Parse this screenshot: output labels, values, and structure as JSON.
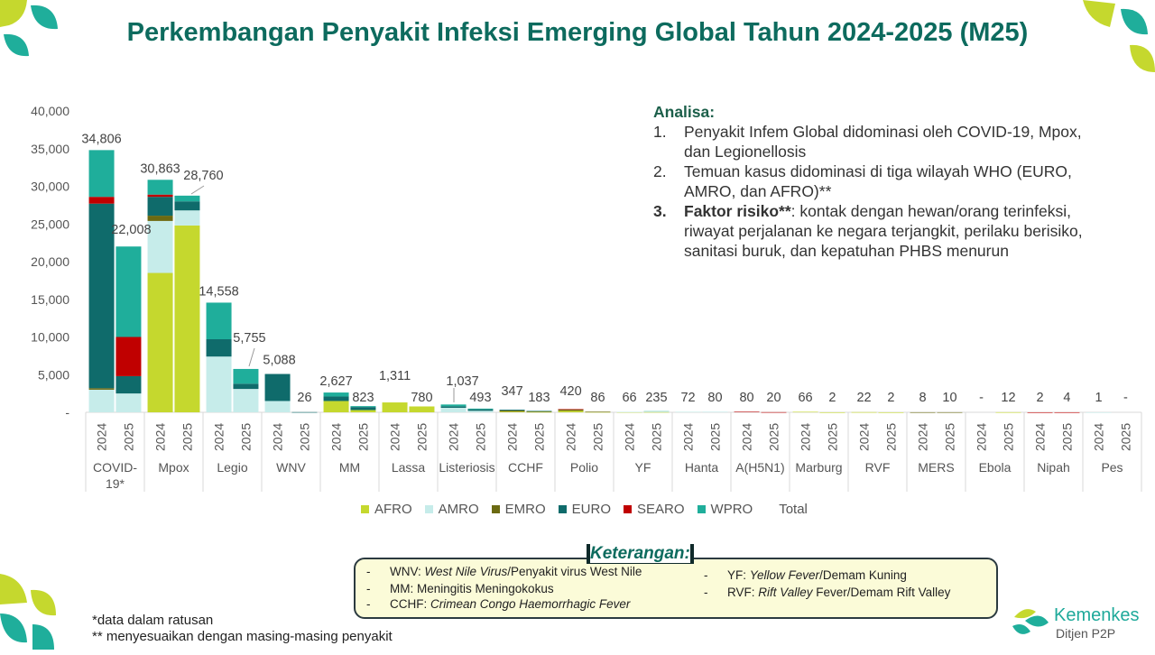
{
  "title": "Perkembangan Penyakit Infeksi Emerging Global Tahun 2024-2025 (M25)",
  "analysis": {
    "heading": "Analisa:",
    "items": [
      {
        "num": "1.",
        "text": "Penyakit Infem Global didominasi oleh COVID-19, Mpox, dan Legionellosis"
      },
      {
        "num": "2.",
        "text": "Temuan kasus didominasi di tiga wilayah WHO (EURO, AMRO, dan AFRO)**"
      },
      {
        "num": "3.",
        "keyword": "Faktor risiko**",
        "text": ": kontak dengan hewan/orang terinfeksi, riwayat perjalanan ke negara terjangkit, perilaku berisiko, sanitasi buruk, dan kepatuhan PHBS menurun"
      }
    ]
  },
  "notes": {
    "title": "Keterangan:",
    "dash": "-",
    "left": [
      {
        "abbr": "WNV: ",
        "desc": "West Nile Virus",
        "rest": "/Penyakit virus West Nile",
        "italic": true
      },
      {
        "abbr": "MM: ",
        "desc": "Meningitis Meningokokus",
        "rest": "",
        "italic": false
      },
      {
        "abbr": "CCHF: ",
        "desc": "Crimean Congo Haemorrhagic Fever",
        "rest": "",
        "italic": true
      }
    ],
    "right": [
      {
        "abbr": "YF: ",
        "desc": "Yellow Fever",
        "rest": "/Demam Kuning",
        "italic": true
      },
      {
        "abbr": "RVF: ",
        "desc": "Rift Valley",
        "rest": " Fever/Demam Rift Valley",
        "italic": true
      }
    ]
  },
  "footer": {
    "line1": "*data dalam ratusan",
    "line2": "** menyesuaikan dengan masing-masing penyakit"
  },
  "brand": {
    "name": "Kemenkes",
    "sub": "Ditjen P2P"
  },
  "colors": {
    "AFRO": "#c5d82e",
    "AMRO": "#c6ecea",
    "EMRO": "#6b6a12",
    "EURO": "#0f6b6b",
    "SEARO": "#c00000",
    "WPRO": "#1fae9b",
    "title": "#0d6b5e",
    "axis": "#d9d9d9"
  },
  "chart_data": {
    "type": "bar",
    "stacked": true,
    "title": "Perkembangan Penyakit Infeksi Emerging Global Tahun 2024-2025 (M25)",
    "ylim": [
      0,
      40000
    ],
    "yticks": [
      "-",
      "5,000",
      "10,000",
      "15,000",
      "20,000",
      "25,000",
      "30,000",
      "35,000",
      "40,000"
    ],
    "series_names": [
      "AFRO",
      "AMRO",
      "EMRO",
      "EURO",
      "SEARO",
      "WPRO"
    ],
    "legend": [
      "AFRO",
      "AMRO",
      "EMRO",
      "EURO",
      "SEARO",
      "WPRO",
      "Total"
    ],
    "groups": [
      {
        "name": "COVID-19*",
        "bars": [
          {
            "year": "2024",
            "total": 34806,
            "label": "34,806",
            "values": [
              0,
              3000,
              200,
              24500,
              900,
              6206
            ]
          },
          {
            "year": "2025",
            "total": 22008,
            "label": "22,008",
            "values": [
              0,
              2500,
              0,
              2300,
              5200,
              12008
            ]
          }
        ]
      },
      {
        "name": "Mpox",
        "bars": [
          {
            "year": "2024",
            "total": 30863,
            "label": "30,863",
            "values": [
              18500,
              6900,
              700,
              2500,
              300,
              1963
            ]
          },
          {
            "year": "2025",
            "total": 28760,
            "label": "28,760",
            "values": [
              24800,
              2000,
              0,
              1200,
              0,
              760
            ]
          }
        ]
      },
      {
        "name": "Legio",
        "bars": [
          {
            "year": "2024",
            "total": 14558,
            "label": "14,558",
            "values": [
              0,
              7400,
              0,
              2300,
              0,
              4858
            ]
          },
          {
            "year": "2025",
            "total": 5755,
            "label": "5,755",
            "values": [
              0,
              3100,
              0,
              700,
              0,
              1955
            ]
          }
        ]
      },
      {
        "name": "WNV",
        "bars": [
          {
            "year": "2024",
            "total": 5088,
            "label": "5,088",
            "values": [
              0,
              1500,
              0,
              3588,
              0,
              0
            ]
          },
          {
            "year": "2025",
            "total": 26,
            "label": "26",
            "values": [
              0,
              0,
              0,
              26,
              0,
              0
            ]
          }
        ]
      },
      {
        "name": "MM",
        "bars": [
          {
            "year": "2024",
            "total": 2627,
            "label": "2,627",
            "values": [
              1500,
              0,
              0,
              600,
              0,
              527
            ]
          },
          {
            "year": "2025",
            "total": 823,
            "label": "823",
            "values": [
              300,
              0,
              0,
              400,
              0,
              123
            ]
          }
        ]
      },
      {
        "name": "Lassa",
        "bars": [
          {
            "year": "2024",
            "total": 1311,
            "label": "1,311",
            "values": [
              1311,
              0,
              0,
              0,
              0,
              0
            ]
          },
          {
            "year": "2025",
            "total": 780,
            "label": "780",
            "values": [
              780,
              0,
              0,
              0,
              0,
              0
            ]
          }
        ]
      },
      {
        "name": "Listeriosis",
        "bars": [
          {
            "year": "2024",
            "total": 1037,
            "label": "1,037",
            "values": [
              0,
              600,
              0,
              200,
              0,
              237
            ]
          },
          {
            "year": "2025",
            "total": 493,
            "label": "493",
            "values": [
              0,
              200,
              0,
              200,
              0,
              93
            ]
          }
        ]
      },
      {
        "name": "CCHF",
        "bars": [
          {
            "year": "2024",
            "total": 347,
            "label": "347",
            "values": [
              100,
              0,
              147,
              100,
              0,
              0
            ]
          },
          {
            "year": "2025",
            "total": 183,
            "label": "183",
            "values": [
              50,
              0,
              80,
              53,
              0,
              0
            ]
          }
        ]
      },
      {
        "name": "Polio",
        "bars": [
          {
            "year": "2024",
            "total": 420,
            "label": "420",
            "values": [
              200,
              0,
              180,
              0,
              40,
              0
            ]
          },
          {
            "year": "2025",
            "total": 86,
            "label": "86",
            "values": [
              40,
              0,
              46,
              0,
              0,
              0
            ]
          }
        ]
      },
      {
        "name": "YF",
        "bars": [
          {
            "year": "2024",
            "total": 66,
            "label": "66",
            "values": [
              30,
              36,
              0,
              0,
              0,
              0
            ]
          },
          {
            "year": "2025",
            "total": 235,
            "label": "235",
            "values": [
              35,
              200,
              0,
              0,
              0,
              0
            ]
          }
        ]
      },
      {
        "name": "Hanta",
        "bars": [
          {
            "year": "2024",
            "total": 72,
            "label": "72",
            "values": [
              0,
              72,
              0,
              0,
              0,
              0
            ]
          },
          {
            "year": "2025",
            "total": 80,
            "label": "80",
            "values": [
              0,
              80,
              0,
              0,
              0,
              0
            ]
          }
        ]
      },
      {
        "name": "A(H5N1)",
        "bars": [
          {
            "year": "2024",
            "total": 80,
            "label": "80",
            "values": [
              0,
              70,
              0,
              0,
              10,
              0
            ]
          },
          {
            "year": "2025",
            "total": 20,
            "label": "20",
            "values": [
              0,
              10,
              0,
              0,
              10,
              0
            ]
          }
        ]
      },
      {
        "name": "Marburg",
        "bars": [
          {
            "year": "2024",
            "total": 66,
            "label": "66",
            "values": [
              66,
              0,
              0,
              0,
              0,
              0
            ]
          },
          {
            "year": "2025",
            "total": 2,
            "label": "2",
            "values": [
              2,
              0,
              0,
              0,
              0,
              0
            ]
          }
        ]
      },
      {
        "name": "RVF",
        "bars": [
          {
            "year": "2024",
            "total": 22,
            "label": "22",
            "values": [
              22,
              0,
              0,
              0,
              0,
              0
            ]
          },
          {
            "year": "2025",
            "total": 2,
            "label": "2",
            "values": [
              2,
              0,
              0,
              0,
              0,
              0
            ]
          }
        ]
      },
      {
        "name": "MERS",
        "bars": [
          {
            "year": "2024",
            "total": 8,
            "label": "8",
            "values": [
              0,
              0,
              8,
              0,
              0,
              0
            ]
          },
          {
            "year": "2025",
            "total": 10,
            "label": "10",
            "values": [
              0,
              0,
              10,
              0,
              0,
              0
            ]
          }
        ]
      },
      {
        "name": "Ebola",
        "bars": [
          {
            "year": "2024",
            "total": 0,
            "label": "-",
            "values": [
              0,
              0,
              0,
              0,
              0,
              0
            ]
          },
          {
            "year": "2025",
            "total": 12,
            "label": "12",
            "values": [
              12,
              0,
              0,
              0,
              0,
              0
            ]
          }
        ]
      },
      {
        "name": "Nipah",
        "bars": [
          {
            "year": "2024",
            "total": 2,
            "label": "2",
            "values": [
              0,
              0,
              0,
              0,
              2,
              0
            ]
          },
          {
            "year": "2025",
            "total": 4,
            "label": "4",
            "values": [
              0,
              0,
              0,
              0,
              4,
              0
            ]
          }
        ]
      },
      {
        "name": "Pes",
        "bars": [
          {
            "year": "2024",
            "total": 1,
            "label": "1",
            "values": [
              0,
              1,
              0,
              0,
              0,
              0
            ]
          },
          {
            "year": "2025",
            "total": 0,
            "label": "-",
            "values": [
              0,
              0,
              0,
              0,
              0,
              0
            ]
          }
        ]
      }
    ]
  }
}
